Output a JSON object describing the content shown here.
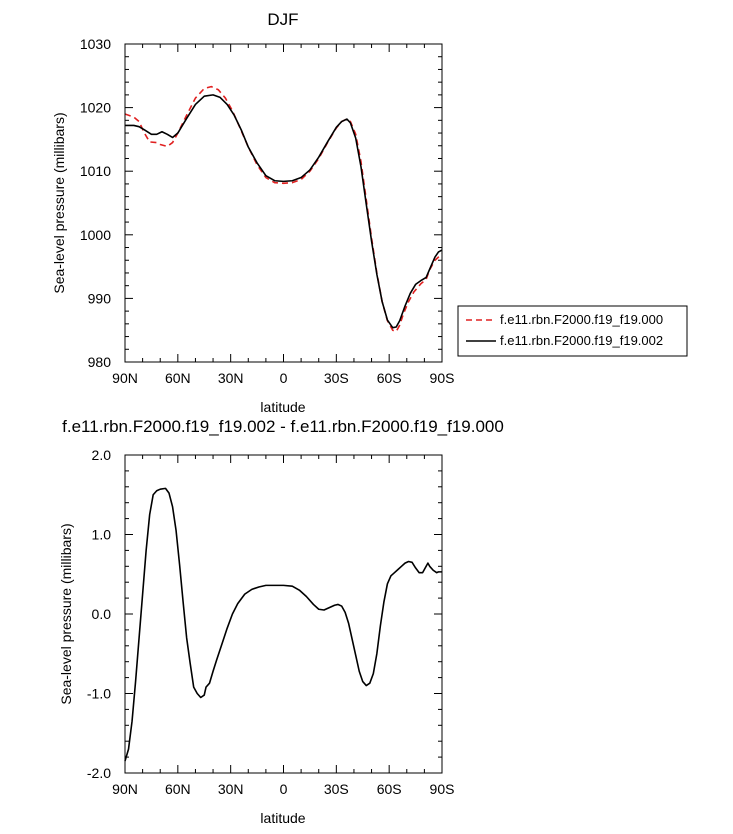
{
  "chart_data": [
    {
      "type": "line",
      "title": "DJF",
      "xlabel": "latitude",
      "ylabel": "Sea-level pressure (millibars)",
      "xlim": [
        90,
        -90
      ],
      "ylim": [
        980,
        1030
      ],
      "xticks": [
        90,
        60,
        30,
        0,
        -30,
        -60,
        -90
      ],
      "xtick_labels": [
        "90N",
        "60N",
        "30N",
        "0",
        "30S",
        "60S",
        "90S"
      ],
      "yticks": [
        980,
        990,
        1000,
        1010,
        1020,
        1030
      ],
      "ytick_labels": [
        "980",
        "990",
        "1000",
        "1010",
        "1020",
        "1030"
      ],
      "legend_position": "right",
      "series": [
        {
          "name": "f.e11.rbn.F2000.f19_f19.000",
          "color": "#e02020",
          "dash": "dashed",
          "points": [
            [
              90,
              1019
            ],
            [
              85,
              1018.5
            ],
            [
              82,
              1017.8
            ],
            [
              79,
              1016
            ],
            [
              76,
              1014.6
            ],
            [
              72,
              1014.5
            ],
            [
              70,
              1014.2
            ],
            [
              66,
              1013.9
            ],
            [
              63,
              1014.5
            ],
            [
              60,
              1016
            ],
            [
              55,
              1018.8
            ],
            [
              50,
              1021.5
            ],
            [
              45,
              1023
            ],
            [
              41,
              1023.3
            ],
            [
              37,
              1022.8
            ],
            [
              33,
              1021.5
            ],
            [
              29,
              1019.5
            ],
            [
              25,
              1017
            ],
            [
              20,
              1013.8
            ],
            [
              15,
              1011
            ],
            [
              10,
              1009
            ],
            [
              5,
              1008.2
            ],
            [
              0,
              1008.1
            ],
            [
              -5,
              1008.2
            ],
            [
              -10,
              1008.7
            ],
            [
              -15,
              1010
            ],
            [
              -20,
              1012
            ],
            [
              -25,
              1014.5
            ],
            [
              -30,
              1016.8
            ],
            [
              -33,
              1017.8
            ],
            [
              -36,
              1018.2
            ],
            [
              -38,
              1017.8
            ],
            [
              -41,
              1015.8
            ],
            [
              -44,
              1011.5
            ],
            [
              -47,
              1005.5
            ],
            [
              -50,
              999.5
            ],
            [
              -53,
              994
            ],
            [
              -56,
              989.5
            ],
            [
              -59,
              986.5
            ],
            [
              -62,
              985
            ],
            [
              -64,
              984.8
            ],
            [
              -66,
              985.8
            ],
            [
              -68,
              987.5
            ],
            [
              -71,
              989.5
            ],
            [
              -74,
              991
            ],
            [
              -78,
              992.3
            ],
            [
              -81,
              993
            ],
            [
              -83,
              994.5
            ],
            [
              -86,
              996
            ],
            [
              -90,
              997
            ]
          ]
        },
        {
          "name": "f.e11.rbn.F2000.f19_f19.002",
          "color": "#000000",
          "dash": "solid",
          "points": [
            [
              90,
              1017.2
            ],
            [
              85,
              1017.2
            ],
            [
              82,
              1017
            ],
            [
              79,
              1016.5
            ],
            [
              75,
              1015.8
            ],
            [
              72,
              1015.8
            ],
            [
              69,
              1016.2
            ],
            [
              66,
              1015.8
            ],
            [
              63,
              1015.3
            ],
            [
              60,
              1016
            ],
            [
              55,
              1018.3
            ],
            [
              50,
              1020.5
            ],
            [
              45,
              1021.8
            ],
            [
              40,
              1022
            ],
            [
              36,
              1021.6
            ],
            [
              32,
              1020.5
            ],
            [
              28,
              1018.8
            ],
            [
              24,
              1016.5
            ],
            [
              20,
              1013.8
            ],
            [
              15,
              1011.3
            ],
            [
              10,
              1009.3
            ],
            [
              5,
              1008.5
            ],
            [
              0,
              1008.4
            ],
            [
              -5,
              1008.5
            ],
            [
              -10,
              1009
            ],
            [
              -15,
              1010.2
            ],
            [
              -20,
              1012.2
            ],
            [
              -25,
              1014.6
            ],
            [
              -30,
              1016.9
            ],
            [
              -33,
              1017.8
            ],
            [
              -36,
              1018.2
            ],
            [
              -38,
              1017.6
            ],
            [
              -41,
              1015.2
            ],
            [
              -44,
              1010.7
            ],
            [
              -47,
              1004.8
            ],
            [
              -50,
              999
            ],
            [
              -53,
              993.8
            ],
            [
              -56,
              989.5
            ],
            [
              -59,
              986.6
            ],
            [
              -62,
              985.4
            ],
            [
              -64,
              985.5
            ],
            [
              -66,
              986.5
            ],
            [
              -69,
              988.8
            ],
            [
              -72,
              990.8
            ],
            [
              -75,
              992.2
            ],
            [
              -78,
              992.8
            ],
            [
              -81,
              993.3
            ],
            [
              -83,
              994.6
            ],
            [
              -86,
              996.5
            ],
            [
              -88,
              997.3
            ],
            [
              -90,
              997.6
            ]
          ]
        }
      ]
    },
    {
      "type": "line",
      "title": "f.e11.rbn.F2000.f19_f19.002 - f.e11.rbn.F2000.f19_f19.000",
      "xlabel": "latitude",
      "ylabel": "Sea-level pressure (millibars)",
      "xlim": [
        90,
        -90
      ],
      "ylim": [
        -2.0,
        2.0
      ],
      "xticks": [
        90,
        60,
        30,
        0,
        -30,
        -60,
        -90
      ],
      "xtick_labels": [
        "90N",
        "60N",
        "30N",
        "0",
        "30S",
        "60S",
        "90S"
      ],
      "yticks": [
        -2.0,
        -1.0,
        0.0,
        1.0,
        2.0
      ],
      "ytick_labels": [
        "-2.0",
        "-1.0",
        "0.0",
        "1.0",
        "2.0"
      ],
      "series": [
        {
          "color": "#000000",
          "dash": "solid",
          "points": [
            [
              90,
              -1.85
            ],
            [
              88,
              -1.7
            ],
            [
              86,
              -1.35
            ],
            [
              84,
              -0.85
            ],
            [
              82,
              -0.3
            ],
            [
              80,
              0.25
            ],
            [
              78,
              0.8
            ],
            [
              76,
              1.25
            ],
            [
              74,
              1.5
            ],
            [
              72,
              1.55
            ],
            [
              70,
              1.57
            ],
            [
              67,
              1.58
            ],
            [
              65,
              1.52
            ],
            [
              63,
              1.35
            ],
            [
              61,
              1.05
            ],
            [
              59,
              0.62
            ],
            [
              57,
              0.15
            ],
            [
              55,
              -0.3
            ],
            [
              53,
              -0.62
            ],
            [
              51,
              -0.92
            ],
            [
              49,
              -1.0
            ],
            [
              47,
              -1.05
            ],
            [
              45,
              -1.02
            ],
            [
              44,
              -0.92
            ],
            [
              42,
              -0.87
            ],
            [
              40,
              -0.72
            ],
            [
              38,
              -0.58
            ],
            [
              35,
              -0.38
            ],
            [
              32,
              -0.18
            ],
            [
              29,
              0.0
            ],
            [
              26,
              0.13
            ],
            [
              22,
              0.25
            ],
            [
              18,
              0.31
            ],
            [
              14,
              0.34
            ],
            [
              10,
              0.36
            ],
            [
              5,
              0.36
            ],
            [
              0,
              0.36
            ],
            [
              -5,
              0.35
            ],
            [
              -9,
              0.3
            ],
            [
              -13,
              0.22
            ],
            [
              -17,
              0.12
            ],
            [
              -20,
              0.06
            ],
            [
              -23,
              0.05
            ],
            [
              -26,
              0.08
            ],
            [
              -29,
              0.11
            ],
            [
              -31,
              0.12
            ],
            [
              -33,
              0.1
            ],
            [
              -35,
              0.02
            ],
            [
              -37,
              -0.12
            ],
            [
              -39,
              -0.32
            ],
            [
              -41,
              -0.52
            ],
            [
              -43,
              -0.72
            ],
            [
              -45,
              -0.85
            ],
            [
              -47,
              -0.9
            ],
            [
              -49,
              -0.87
            ],
            [
              -51,
              -0.75
            ],
            [
              -53,
              -0.5
            ],
            [
              -55,
              -0.15
            ],
            [
              -57,
              0.15
            ],
            [
              -59,
              0.38
            ],
            [
              -61,
              0.48
            ],
            [
              -63,
              0.52
            ],
            [
              -65,
              0.56
            ],
            [
              -67,
              0.6
            ],
            [
              -69,
              0.64
            ],
            [
              -71,
              0.66
            ],
            [
              -73,
              0.65
            ],
            [
              -75,
              0.58
            ],
            [
              -77,
              0.52
            ],
            [
              -79,
              0.52
            ],
            [
              -81,
              0.6
            ],
            [
              -82,
              0.64
            ],
            [
              -83,
              0.6
            ],
            [
              -85,
              0.55
            ],
            [
              -87,
              0.52
            ],
            [
              -88,
              0.53
            ],
            [
              -90,
              0.53
            ]
          ]
        }
      ]
    }
  ]
}
